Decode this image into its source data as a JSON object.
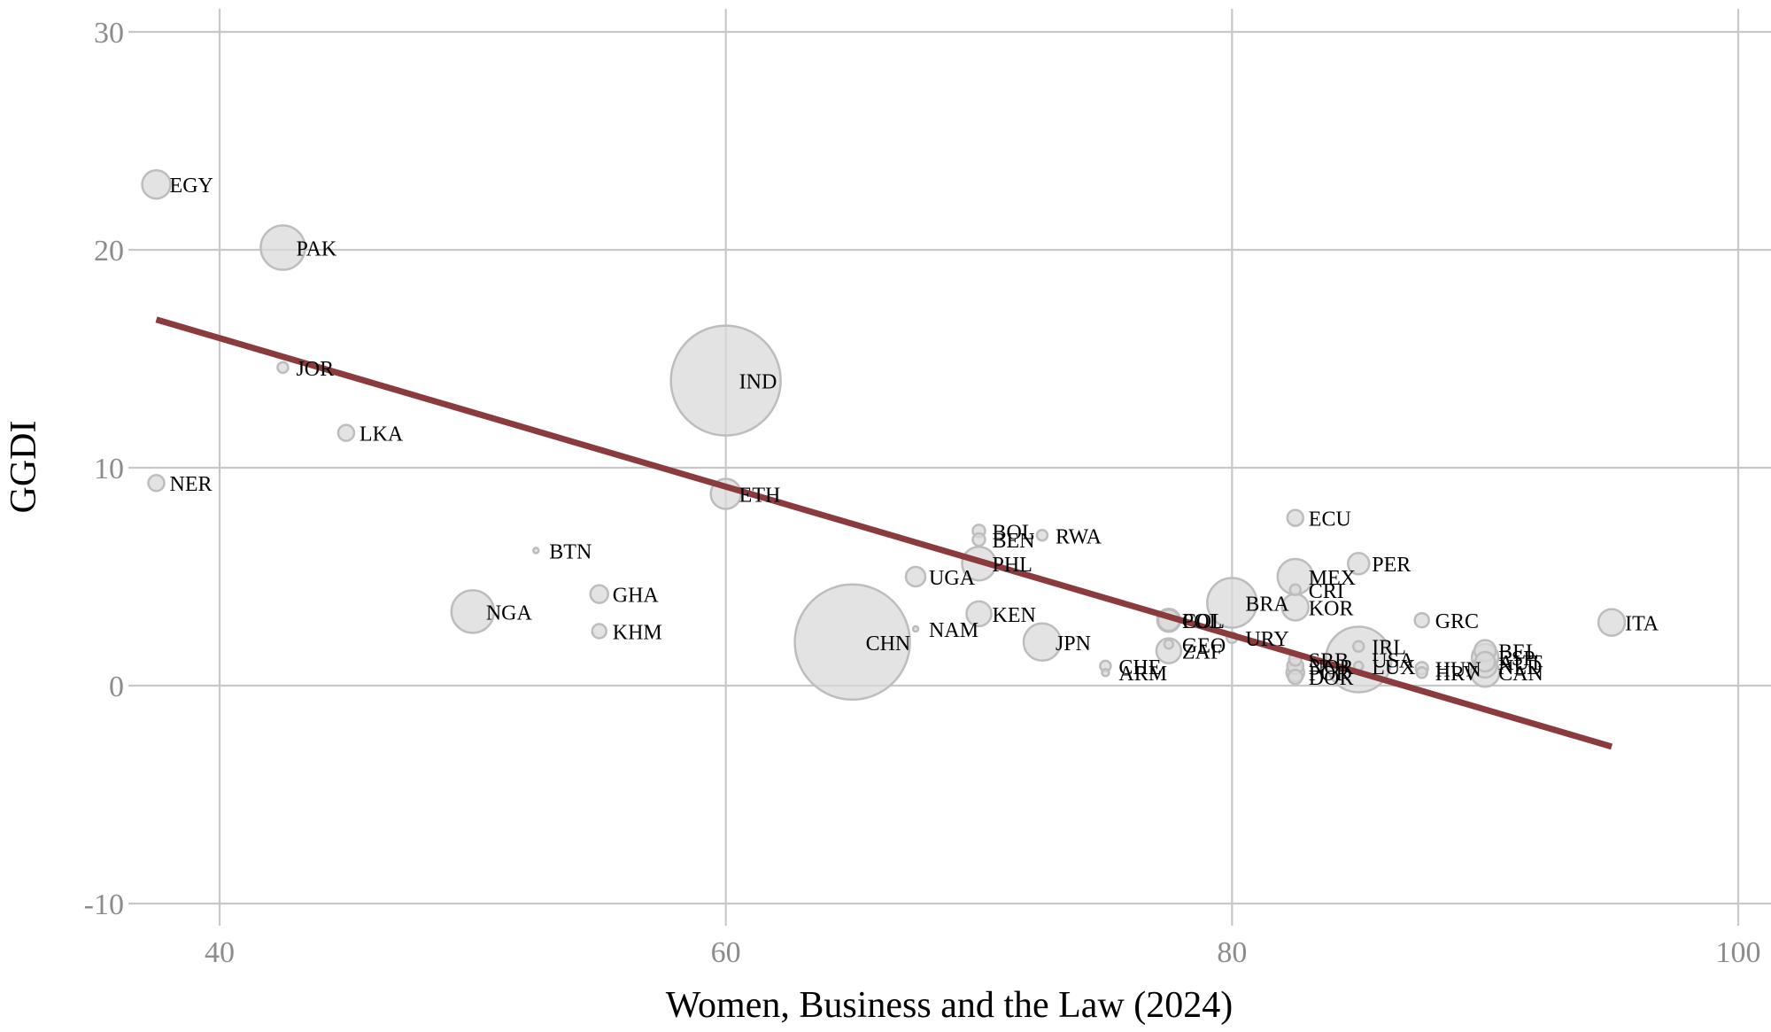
{
  "chart_data": {
    "type": "scatter",
    "xlabel": "Women, Business and the Law (2024)",
    "ylabel": "GGDI",
    "xlim": [
      36.5,
      100.5
    ],
    "ylim": [
      -11,
      31
    ],
    "x_ticks": [
      40,
      60,
      80,
      100
    ],
    "y_ticks": [
      -10,
      0,
      10,
      20,
      30
    ],
    "grid": true,
    "point_color": "#d9d9d9",
    "trend_color": "#8b3a3e",
    "trendline": {
      "x": [
        37.5,
        95
      ],
      "y": [
        16.8,
        -2.8
      ]
    },
    "points": [
      {
        "label": "EGY",
        "x": 37.5,
        "y": 23.0,
        "size": 16
      },
      {
        "label": "PAK",
        "x": 42.5,
        "y": 20.1,
        "size": 25
      },
      {
        "label": "JOR",
        "x": 42.5,
        "y": 14.6,
        "size": 6
      },
      {
        "label": "LKA",
        "x": 45.0,
        "y": 11.6,
        "size": 9
      },
      {
        "label": "NER",
        "x": 37.5,
        "y": 9.3,
        "size": 9
      },
      {
        "label": "IND",
        "x": 60.0,
        "y": 14.0,
        "size": 62
      },
      {
        "label": "ETH",
        "x": 60.0,
        "y": 8.8,
        "size": 17
      },
      {
        "label": "BTN",
        "x": 52.5,
        "y": 6.2,
        "size": 3
      },
      {
        "label": "GHA",
        "x": 55.0,
        "y": 4.2,
        "size": 10
      },
      {
        "label": "KHM",
        "x": 55.0,
        "y": 2.5,
        "size": 8
      },
      {
        "label": "NGA",
        "x": 50.0,
        "y": 3.4,
        "size": 24
      },
      {
        "label": "CHN",
        "x": 65.0,
        "y": 2.0,
        "size": 65
      },
      {
        "label": "NAM",
        "x": 67.5,
        "y": 2.6,
        "size": 3
      },
      {
        "label": "UGA",
        "x": 67.5,
        "y": 5.0,
        "size": 11
      },
      {
        "label": "BOL",
        "x": 70.0,
        "y": 7.1,
        "size": 7
      },
      {
        "label": "BEN",
        "x": 70.0,
        "y": 6.7,
        "size": 7
      },
      {
        "label": "PHL",
        "x": 70.0,
        "y": 5.6,
        "size": 19
      },
      {
        "label": "KEN",
        "x": 70.0,
        "y": 3.3,
        "size": 14
      },
      {
        "label": "RWA",
        "x": 72.5,
        "y": 6.9,
        "size": 6
      },
      {
        "label": "JPN",
        "x": 72.5,
        "y": 2.0,
        "size": 21
      },
      {
        "label": "CHE",
        "x": 75.0,
        "y": 0.9,
        "size": 6
      },
      {
        "label": "ARM",
        "x": 75.0,
        "y": 0.6,
        "size": 4
      },
      {
        "label": "COL",
        "x": 77.5,
        "y": 3.0,
        "size": 13
      },
      {
        "label": "POL",
        "x": 77.5,
        "y": 3.0,
        "size": 12
      },
      {
        "label": "GEO",
        "x": 77.5,
        "y": 1.9,
        "size": 5
      },
      {
        "label": "ZAF",
        "x": 77.5,
        "y": 1.6,
        "size": 14
      },
      {
        "label": "BRA",
        "x": 80.0,
        "y": 3.8,
        "size": 28
      },
      {
        "label": "URY",
        "x": 80.0,
        "y": 2.2,
        "size": 6
      },
      {
        "label": "ECU",
        "x": 82.5,
        "y": 7.7,
        "size": 9
      },
      {
        "label": "MEX",
        "x": 82.5,
        "y": 5.0,
        "size": 20
      },
      {
        "label": "CRI",
        "x": 82.5,
        "y": 4.4,
        "size": 6
      },
      {
        "label": "KOR",
        "x": 82.5,
        "y": 3.6,
        "size": 15
      },
      {
        "label": "SRB",
        "x": 82.5,
        "y": 1.2,
        "size": 7
      },
      {
        "label": "NOR",
        "x": 82.5,
        "y": 0.9,
        "size": 9
      },
      {
        "label": "POR",
        "x": 82.5,
        "y": 0.6,
        "size": 10
      },
      {
        "label": "DOR",
        "x": 82.5,
        "y": 0.4,
        "size": 8
      },
      {
        "label": "PER",
        "x": 85.0,
        "y": 5.6,
        "size": 12
      },
      {
        "label": "IRL",
        "x": 85.0,
        "y": 1.8,
        "size": 6
      },
      {
        "label": "USA",
        "x": 85.0,
        "y": 1.2,
        "size": 37
      },
      {
        "label": "LUX",
        "x": 85.0,
        "y": 0.9,
        "size": 5
      },
      {
        "label": "GRC",
        "x": 87.5,
        "y": 3.0,
        "size": 8
      },
      {
        "label": "HUN",
        "x": 87.5,
        "y": 0.8,
        "size": 7
      },
      {
        "label": "HRV",
        "x": 87.5,
        "y": 0.6,
        "size": 6
      },
      {
        "label": "BEL",
        "x": 90.0,
        "y": 1.6,
        "size": 12
      },
      {
        "label": "ESP",
        "x": 90.0,
        "y": 1.3,
        "size": 15
      },
      {
        "label": "AUT",
        "x": 90.0,
        "y": 1.1,
        "size": 11
      },
      {
        "label": "NLD",
        "x": 90.0,
        "y": 0.9,
        "size": 13
      },
      {
        "label": "CAN",
        "x": 90.0,
        "y": 0.6,
        "size": 16
      },
      {
        "label": "ITA",
        "x": 95.0,
        "y": 2.9,
        "size": 15
      }
    ]
  }
}
